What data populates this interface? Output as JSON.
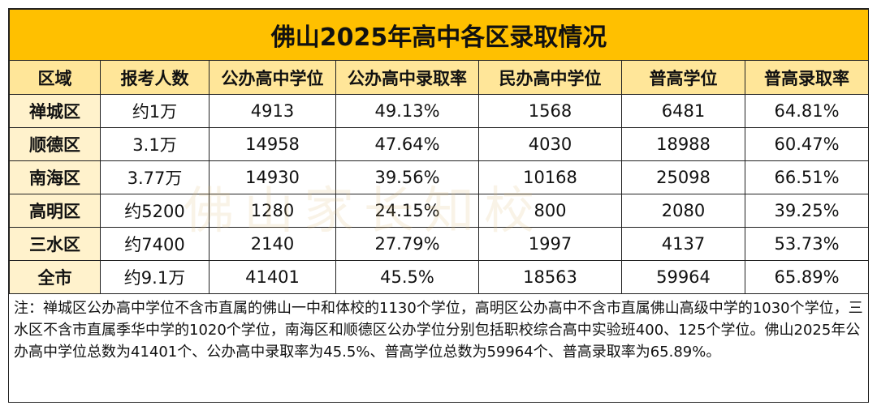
{
  "header": {
    "title": "佛山2025年高中各区录取情况"
  },
  "table": {
    "columns": [
      "区域",
      "报考人数",
      "公办高中学位",
      "公办高中录取率",
      "民办高中学位",
      "普高学位",
      "普高录取率"
    ],
    "rows": [
      [
        "禅城区",
        "约1万",
        "4913",
        "49.13%",
        "1568",
        "6481",
        "64.81%"
      ],
      [
        "顺德区",
        "3.1万",
        "14958",
        "47.64%",
        "4030",
        "18988",
        "60.47%"
      ],
      [
        "南海区",
        "3.77万",
        "14930",
        "39.56%",
        "10168",
        "25098",
        "66.51%"
      ],
      [
        "高明区",
        "约5200",
        "1280",
        "24.15%",
        "800",
        "2080",
        "39.25%"
      ],
      [
        "三水区",
        "约7400",
        "2140",
        "27.79%",
        "1997",
        "4137",
        "53.73%"
      ],
      [
        "全市",
        "约9.1万",
        "41401",
        "45.5%",
        "18563",
        "59964",
        "65.89%"
      ]
    ]
  },
  "note": "注：禅城区公办高中学位不含市直属的佛山一中和体校的1130个学位，高明区公办高中不含市直属佛山高级中学的1030个学位，三水区不含市直属季华中学的1020个学位，南海区和顺德区公办学位分别包括职校综合高中实验班400、125个学位。佛山2025年公办高中学位总数为41401个、公办高中录取率为45.5%、普高学位总数为59964个、普高录取率为65.89%。",
  "watermark": "佛山家长知校"
}
